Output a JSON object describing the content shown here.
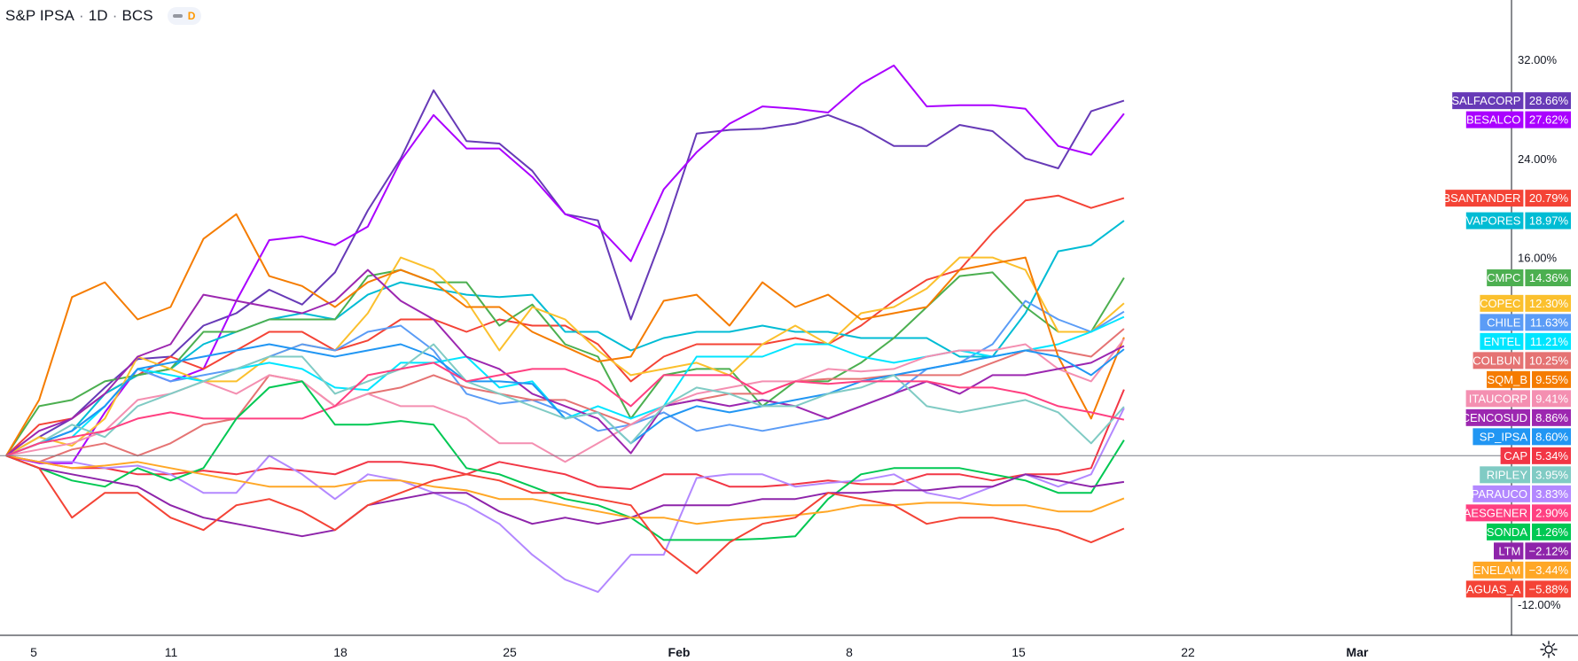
{
  "header": {
    "symbol": "S&P IPSA",
    "interval": "1D",
    "exchange": "BCS",
    "badge": "D",
    "separator": "·"
  },
  "colors": {
    "axis": "#131722",
    "tick_text": "#131722",
    "baseline": "#787b86",
    "background": "#ffffff"
  },
  "icons": {
    "settings": "gear-icon"
  },
  "chart_data": {
    "type": "line",
    "title": "S&P IPSA",
    "xlabel": "",
    "ylabel": "",
    "x_ticks": [
      "5",
      "11",
      "18",
      "25",
      "Feb",
      "8",
      "15",
      "22",
      "Mar"
    ],
    "y_ticks": [
      "32.00%",
      "24.00%",
      "16.00%",
      "-12.00%"
    ],
    "ylim": [
      -14.5,
      35.5
    ],
    "x": [
      "Jan 4",
      "Jan 5",
      "Jan 6",
      "Jan 7",
      "Jan 8",
      "Jan 11",
      "Jan 12",
      "Jan 13",
      "Jan 14",
      "Jan 15",
      "Jan 18",
      "Jan 19",
      "Jan 20",
      "Jan 21",
      "Jan 22",
      "Jan 25",
      "Jan 26",
      "Jan 27",
      "Jan 28",
      "Jan 29",
      "Feb 1",
      "Feb 2",
      "Feb 3",
      "Feb 4",
      "Feb 5",
      "Feb 8",
      "Feb 9",
      "Feb 10",
      "Feb 11",
      "Feb 12",
      "Feb 15",
      "Feb 16",
      "Feb 17",
      "Feb 18",
      "Feb 19",
      "Feb 22"
    ],
    "grid": false,
    "legend": "right-side value labels",
    "baseline": 0,
    "series": [
      {
        "name": "SALFACORP",
        "color": "#673ab7",
        "last": "28.66%",
        "values": [
          0,
          1.5,
          3,
          5.5,
          7.8,
          8,
          10.5,
          11.5,
          13.4,
          12.2,
          14.8,
          19.8,
          24,
          29.5,
          25.4,
          25.2,
          23,
          19.5,
          19,
          11,
          18,
          26,
          26.3,
          26.4,
          26.8,
          27.5,
          26.5,
          25,
          25,
          26.7,
          26.2,
          24,
          23.2,
          27.8,
          28.66,
          28.66
        ]
      },
      {
        "name": "BESALCO",
        "color": "#aa00ff",
        "last": "27.62%",
        "values": [
          0,
          -0.6,
          -0.6,
          3.5,
          7,
          6,
          7,
          12.5,
          17.4,
          17.7,
          17,
          18.5,
          23.8,
          27.5,
          24.8,
          24.8,
          22.5,
          19.5,
          18.5,
          15.7,
          21.5,
          24.5,
          26.8,
          28.2,
          28,
          27.7,
          30,
          31.5,
          28.2,
          28.3,
          28.3,
          28,
          25,
          24.3,
          27.62,
          27.62
        ]
      },
      {
        "name": "BSANTANDER",
        "color": "#f44336",
        "last": "20.79%",
        "values": [
          0,
          2.5,
          3,
          5,
          6.5,
          8,
          7,
          8.5,
          10,
          10,
          8.5,
          9.3,
          11,
          11,
          10,
          11,
          10.5,
          10.5,
          9,
          6,
          8,
          9,
          9,
          9,
          9.5,
          9,
          10.5,
          12.5,
          14.2,
          15,
          18,
          20.6,
          21,
          20,
          20.79,
          20.79
        ]
      },
      {
        "name": "VAPORES",
        "color": "#00bcd4",
        "last": "18.97%",
        "values": [
          0,
          1,
          2,
          5,
          6.5,
          7,
          9,
          10,
          11,
          11.5,
          11,
          13,
          14,
          13.5,
          13,
          12.8,
          13,
          10,
          10,
          8.5,
          9.5,
          10,
          10,
          10.5,
          10,
          10,
          9.5,
          9.5,
          9.5,
          8,
          8,
          11.5,
          16.5,
          17,
          18.97,
          18.97
        ]
      },
      {
        "name": "CMPC",
        "color": "#4caf50",
        "last": "14.36%",
        "values": [
          0,
          4,
          4.5,
          6,
          6.5,
          7,
          10,
          10,
          11,
          11,
          11,
          14.5,
          15,
          14,
          14,
          10.5,
          12.2,
          9,
          8,
          3,
          6.5,
          7,
          7,
          4,
          6,
          6,
          7.5,
          9.5,
          12,
          14.5,
          14.8,
          12,
          10,
          10,
          14.36,
          14.36
        ]
      },
      {
        "name": "COPEC",
        "color": "#fbc02d",
        "last": "12.30%",
        "values": [
          0,
          1.5,
          0.8,
          3,
          8,
          7,
          6,
          6,
          8,
          9,
          8.5,
          11.5,
          16,
          15,
          12.5,
          8.5,
          12,
          11,
          8.5,
          6.5,
          7,
          7.5,
          6.5,
          9,
          10.5,
          9,
          11.5,
          12,
          13.5,
          16,
          16,
          15,
          10,
          10,
          12.3,
          12.3
        ]
      },
      {
        "name": "CHILE",
        "color": "#5b9cf6",
        "last": "11.63%",
        "values": [
          0,
          1,
          2,
          4,
          7,
          6,
          6.5,
          7,
          8,
          9,
          8.5,
          10,
          10.5,
          8.5,
          5,
          4.2,
          4.5,
          3.5,
          2,
          2.5,
          3.5,
          2,
          2.5,
          2,
          2.5,
          3,
          4,
          5,
          7,
          7.5,
          9,
          12.5,
          11,
          10,
          11.63,
          11.63
        ]
      },
      {
        "name": "ENTEL",
        "color": "#00e5ff",
        "last": "11.21%",
        "values": [
          0,
          1,
          1.5,
          4,
          7,
          6.5,
          6,
          7,
          7.5,
          7,
          5.5,
          5.3,
          7.5,
          7.5,
          8,
          5.5,
          6,
          3,
          4,
          3,
          4,
          8,
          8,
          8,
          9,
          9,
          8,
          7.5,
          8,
          8.5,
          8,
          8.5,
          9,
          10,
          11.21,
          11.21
        ]
      },
      {
        "name": "COLBUN",
        "color": "#e57373",
        "last": "10.25%",
        "values": [
          0,
          -0.5,
          0.5,
          1,
          0,
          1,
          2.5,
          3,
          6.5,
          6,
          4,
          5,
          5.5,
          6.5,
          5.5,
          5,
          4.5,
          4.5,
          3.5,
          2.5,
          4,
          4.5,
          5,
          5,
          6,
          6.2,
          6.2,
          6.5,
          6.5,
          6.5,
          7.5,
          8.5,
          8.5,
          8,
          10.25,
          10.25
        ]
      },
      {
        "name": "SQM_B",
        "color": "#f57c00",
        "last": "9.55%",
        "values": [
          0,
          4.5,
          12.8,
          14,
          11,
          12,
          17.5,
          19.5,
          14.5,
          13.7,
          12,
          14,
          15,
          14,
          12,
          12,
          10,
          8.8,
          7.6,
          8,
          12.5,
          13,
          10.5,
          14,
          12,
          13,
          11,
          11.5,
          12,
          15,
          15.5,
          16,
          8,
          3,
          9.55,
          9.55
        ]
      },
      {
        "name": "ITAUCORP",
        "color": "#f48fb1",
        "last": "9.41%",
        "values": [
          0,
          0.5,
          1,
          2,
          4.5,
          5,
          6,
          5,
          6.5,
          6,
          4,
          5,
          4,
          4,
          3,
          1,
          1,
          -0.5,
          1,
          2.5,
          4,
          5,
          5.5,
          6,
          6,
          7,
          6.8,
          7,
          8,
          8.5,
          8.5,
          9,
          7,
          6,
          9.41,
          9.41
        ]
      },
      {
        "name": "CENCOSUD",
        "color": "#9c27b0",
        "last": "8.86%",
        "values": [
          0,
          2,
          3,
          5,
          8,
          9,
          13,
          12.5,
          12,
          11.5,
          12.5,
          15,
          12.5,
          11,
          8,
          7,
          5,
          4,
          3,
          0.2,
          4,
          4.5,
          4,
          4.5,
          4,
          3,
          4,
          5,
          6,
          5,
          6.5,
          6.5,
          7,
          7.5,
          8.86,
          8.86
        ]
      },
      {
        "name": "SP_IPSA",
        "color": "#2196f3",
        "last": "8.60%",
        "values": [
          0,
          1,
          2,
          4,
          7,
          7.5,
          8,
          8.5,
          9,
          8.5,
          8,
          8.5,
          9,
          8,
          6,
          6,
          5.8,
          3,
          3.5,
          1,
          3,
          4,
          3.5,
          4,
          4.5,
          5,
          6,
          6.5,
          7,
          7.5,
          8,
          8.5,
          8,
          6.5,
          8.6,
          8.6
        ]
      },
      {
        "name": "CAP",
        "color": "#f23645",
        "last": "5.34%",
        "values": [
          0,
          -0.5,
          -1,
          -1,
          -1.5,
          -1.5,
          -1.2,
          -1.5,
          -1,
          -1.2,
          -1.5,
          -0.5,
          -0.5,
          -0.8,
          -1.5,
          -0.5,
          -1,
          -1.5,
          -2.5,
          -2.7,
          -1.5,
          -1.5,
          -2.5,
          -2.5,
          -2.3,
          -2,
          -2.3,
          -2.3,
          -1.5,
          -1.5,
          -2,
          -1.5,
          -1.5,
          -1,
          5.34,
          5.34
        ]
      },
      {
        "name": "RIPLEY",
        "color": "#80cbc4",
        "last": "3.95%",
        "values": [
          0,
          1,
          2.5,
          1.5,
          4,
          5,
          6,
          7,
          8,
          8,
          5,
          6,
          7,
          9,
          6,
          5,
          4,
          3,
          3.5,
          1,
          4,
          5.5,
          5,
          4,
          4,
          5,
          5.5,
          6.5,
          4,
          3.5,
          4,
          4.5,
          3.5,
          1,
          3.95,
          3.95
        ]
      },
      {
        "name": "PARAUCO",
        "color": "#b388ff",
        "last": "3.83%",
        "values": [
          0,
          -0.5,
          -0.5,
          -1,
          -0.8,
          -1.5,
          -3,
          -3,
          0,
          -1.5,
          -3.5,
          -1.5,
          -2,
          -3,
          -4,
          -5.5,
          -8,
          -10,
          -11,
          -8,
          -8,
          -1.8,
          -1.5,
          -1.5,
          -2.5,
          -2.2,
          -2,
          -1.5,
          -3,
          -3.5,
          -2.5,
          -1.5,
          -2.5,
          -1.5,
          3.83,
          3.83
        ]
      },
      {
        "name": "AESGENER",
        "color": "#ff4081",
        "last": "2.90%",
        "values": [
          0,
          1,
          1.5,
          2,
          3,
          3.5,
          3,
          3,
          3,
          3,
          4,
          6.5,
          7,
          7.5,
          6,
          6.5,
          7,
          7,
          6,
          4,
          6.5,
          6.5,
          6.5,
          5,
          6,
          5.8,
          6,
          6,
          6,
          5.5,
          5.5,
          5,
          4,
          3.5,
          2.9,
          2.9
        ]
      },
      {
        "name": "SONDA",
        "color": "#00c853",
        "last": "1.26%",
        "values": [
          0,
          -1,
          -2,
          -2.5,
          -1,
          -2,
          -1,
          3,
          5.5,
          6,
          2.5,
          2.5,
          2.8,
          2.5,
          -1,
          -1.5,
          -2.5,
          -3.5,
          -4,
          -5,
          -6.8,
          -6.8,
          -6.8,
          -6.7,
          -6.5,
          -3.5,
          -1.5,
          -1,
          -1,
          -1,
          -1.5,
          -2,
          -3,
          -3,
          1.26,
          1.26
        ]
      },
      {
        "name": "LTM",
        "color": "#8e24aa",
        "last": "-2.12%",
        "values": [
          0,
          -1,
          -1.5,
          -2,
          -2.5,
          -4,
          -5,
          -5.5,
          -6,
          -6.5,
          -6,
          -4,
          -3.5,
          -3,
          -3,
          -4.5,
          -5.5,
          -5,
          -5.5,
          -5,
          -4,
          -4,
          -4,
          -3.5,
          -3.5,
          -3,
          -3,
          -2.8,
          -2.8,
          -2.5,
          -2.5,
          -1.5,
          -2,
          -2.5,
          -2.12,
          -2.12
        ]
      },
      {
        "name": "ENELAM",
        "color": "#ffa726",
        "last": "-3.44%",
        "values": [
          0,
          -0.5,
          -1,
          -0.8,
          -0.5,
          -1,
          -1.5,
          -2,
          -2.5,
          -2.5,
          -2.5,
          -2,
          -2,
          -2.5,
          -2.8,
          -3.5,
          -3.5,
          -4,
          -4.5,
          -5,
          -5,
          -5.5,
          -5.2,
          -5,
          -4.8,
          -4.5,
          -4,
          -4,
          -3.8,
          -3.8,
          -4,
          -4,
          -4.5,
          -4.5,
          -3.44,
          -3.44
        ]
      },
      {
        "name": "AGUAS_A",
        "color": "#f44336",
        "last": "-5.88%",
        "values": [
          0,
          -1,
          -5,
          -3,
          -3,
          -5,
          -6,
          -4,
          -3.5,
          -4.5,
          -6,
          -4,
          -3,
          -2,
          -1.5,
          -2,
          -3,
          -3,
          -3.5,
          -4,
          -7.5,
          -9.5,
          -7,
          -5.5,
          -5,
          -3,
          -3.5,
          -4,
          -5.5,
          -5,
          -5,
          -5.5,
          -6,
          -7,
          -5.88,
          -5.88
        ]
      }
    ]
  }
}
